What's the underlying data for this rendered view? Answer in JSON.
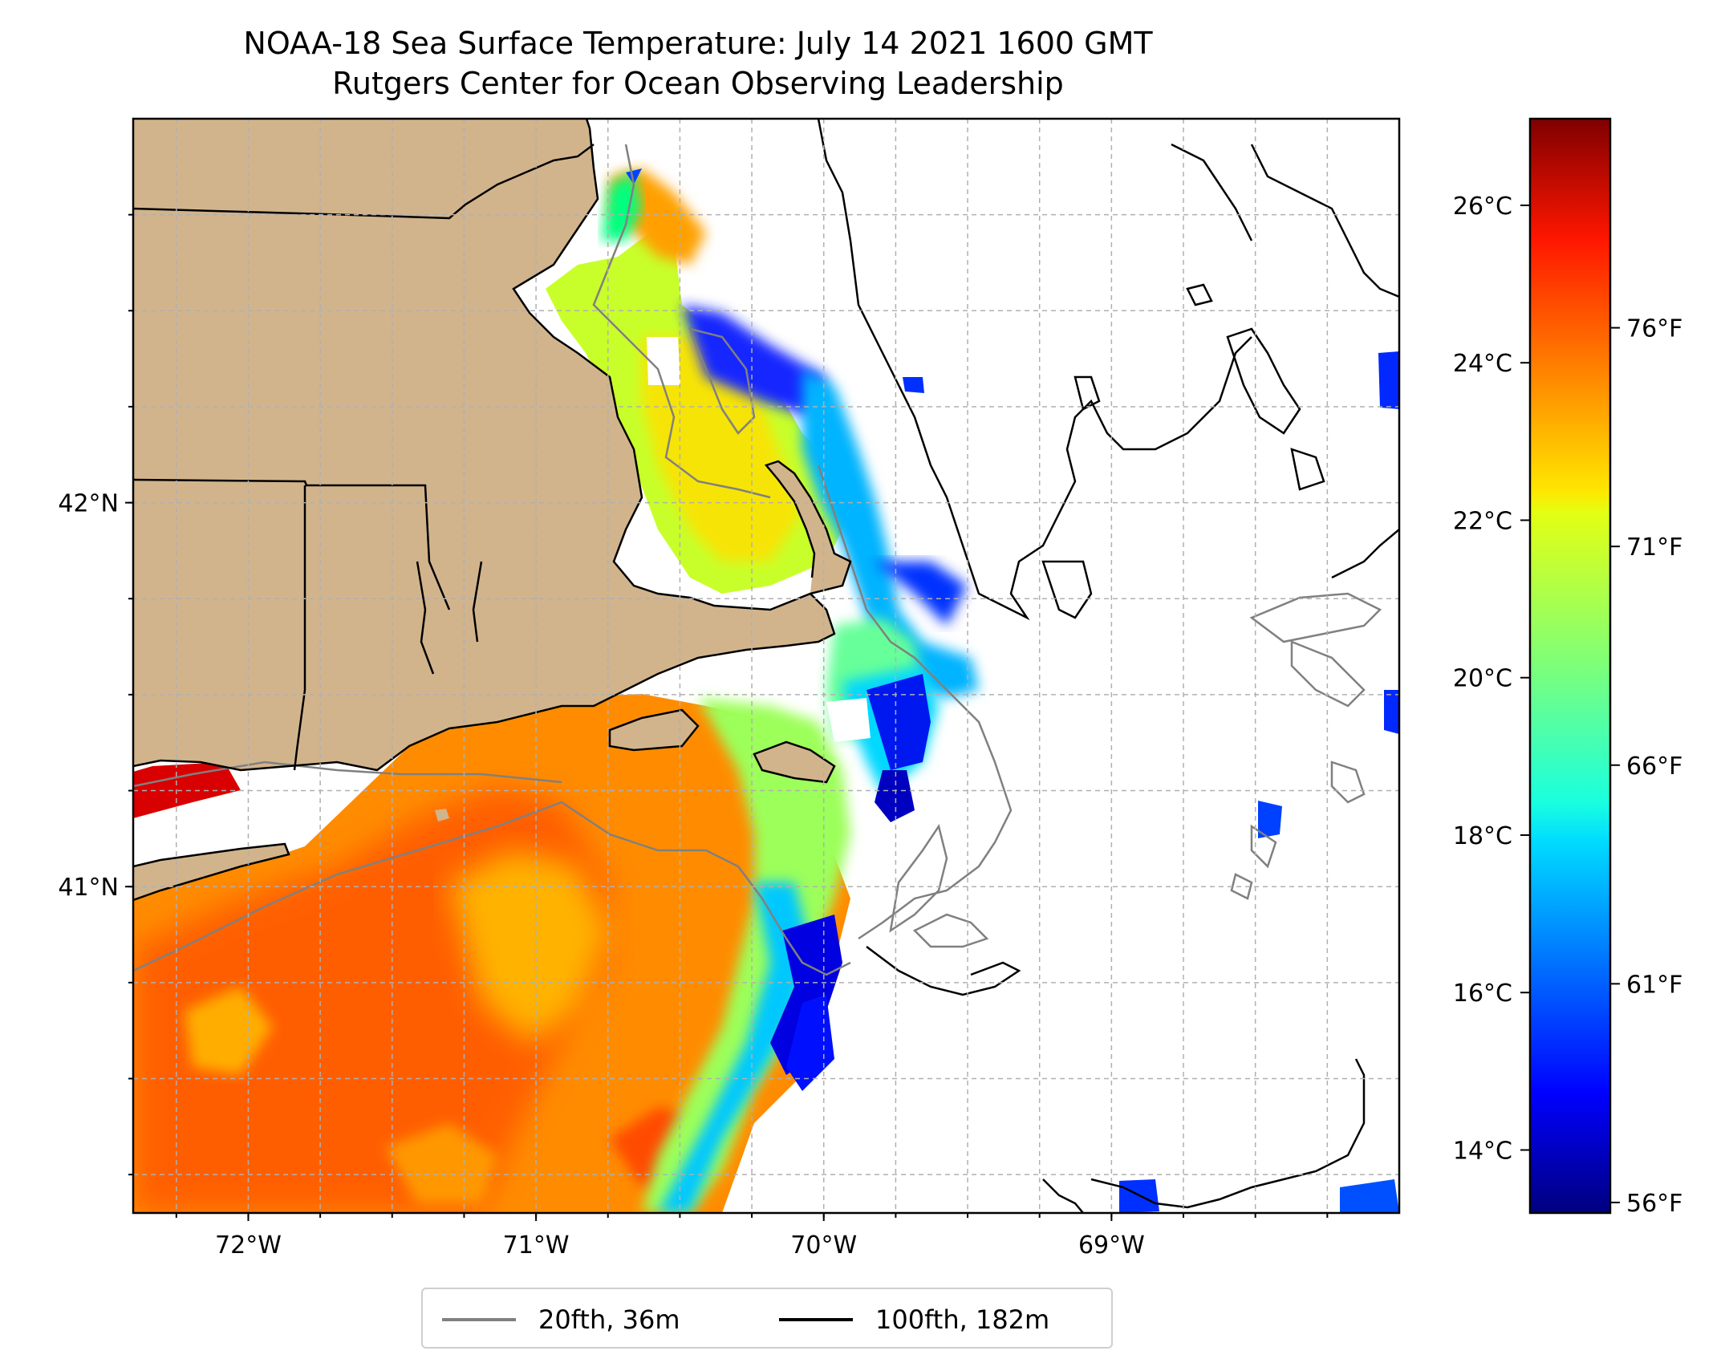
{
  "title": {
    "line1": "NOAA-18 Sea Surface Temperature: July 14 2021 1600 GMT",
    "line2": "Rutgers Center for Ocean Observing Leadership"
  },
  "map": {
    "lon_range": [
      -72.4,
      -68.0
    ],
    "lat_range": [
      40.15,
      43.0
    ],
    "land_color": "#d2b48c",
    "grid": "dashed",
    "lon_ticks": [
      {
        "value": -72,
        "label": "72°W"
      },
      {
        "value": -71,
        "label": "71°W"
      },
      {
        "value": -70,
        "label": "70°W"
      },
      {
        "value": -69,
        "label": "69°W"
      }
    ],
    "lat_ticks": [
      {
        "value": 42,
        "label": "42°N"
      },
      {
        "value": 41,
        "label": "41°N"
      }
    ]
  },
  "colorbar": {
    "colormap": "jet",
    "range_c": [
      13.2,
      27.1
    ],
    "celsius_ticks": [
      {
        "value": 14,
        "label": "14°C"
      },
      {
        "value": 16,
        "label": "16°C"
      },
      {
        "value": 18,
        "label": "18°C"
      },
      {
        "value": 20,
        "label": "20°C"
      },
      {
        "value": 22,
        "label": "22°C"
      },
      {
        "value": 24,
        "label": "24°C"
      },
      {
        "value": 26,
        "label": "26°C"
      }
    ],
    "fahrenheit_ticks": [
      {
        "value": 56,
        "label": "56°F"
      },
      {
        "value": 61,
        "label": "61°F"
      },
      {
        "value": 66,
        "label": "66°F"
      },
      {
        "value": 71,
        "label": "71°F"
      },
      {
        "value": 76,
        "label": "76°F"
      }
    ]
  },
  "legend": {
    "items": [
      {
        "label": "20fth, 36m",
        "color": "#808080"
      },
      {
        "label": "100fth, 182m",
        "color": "#000000"
      }
    ]
  }
}
